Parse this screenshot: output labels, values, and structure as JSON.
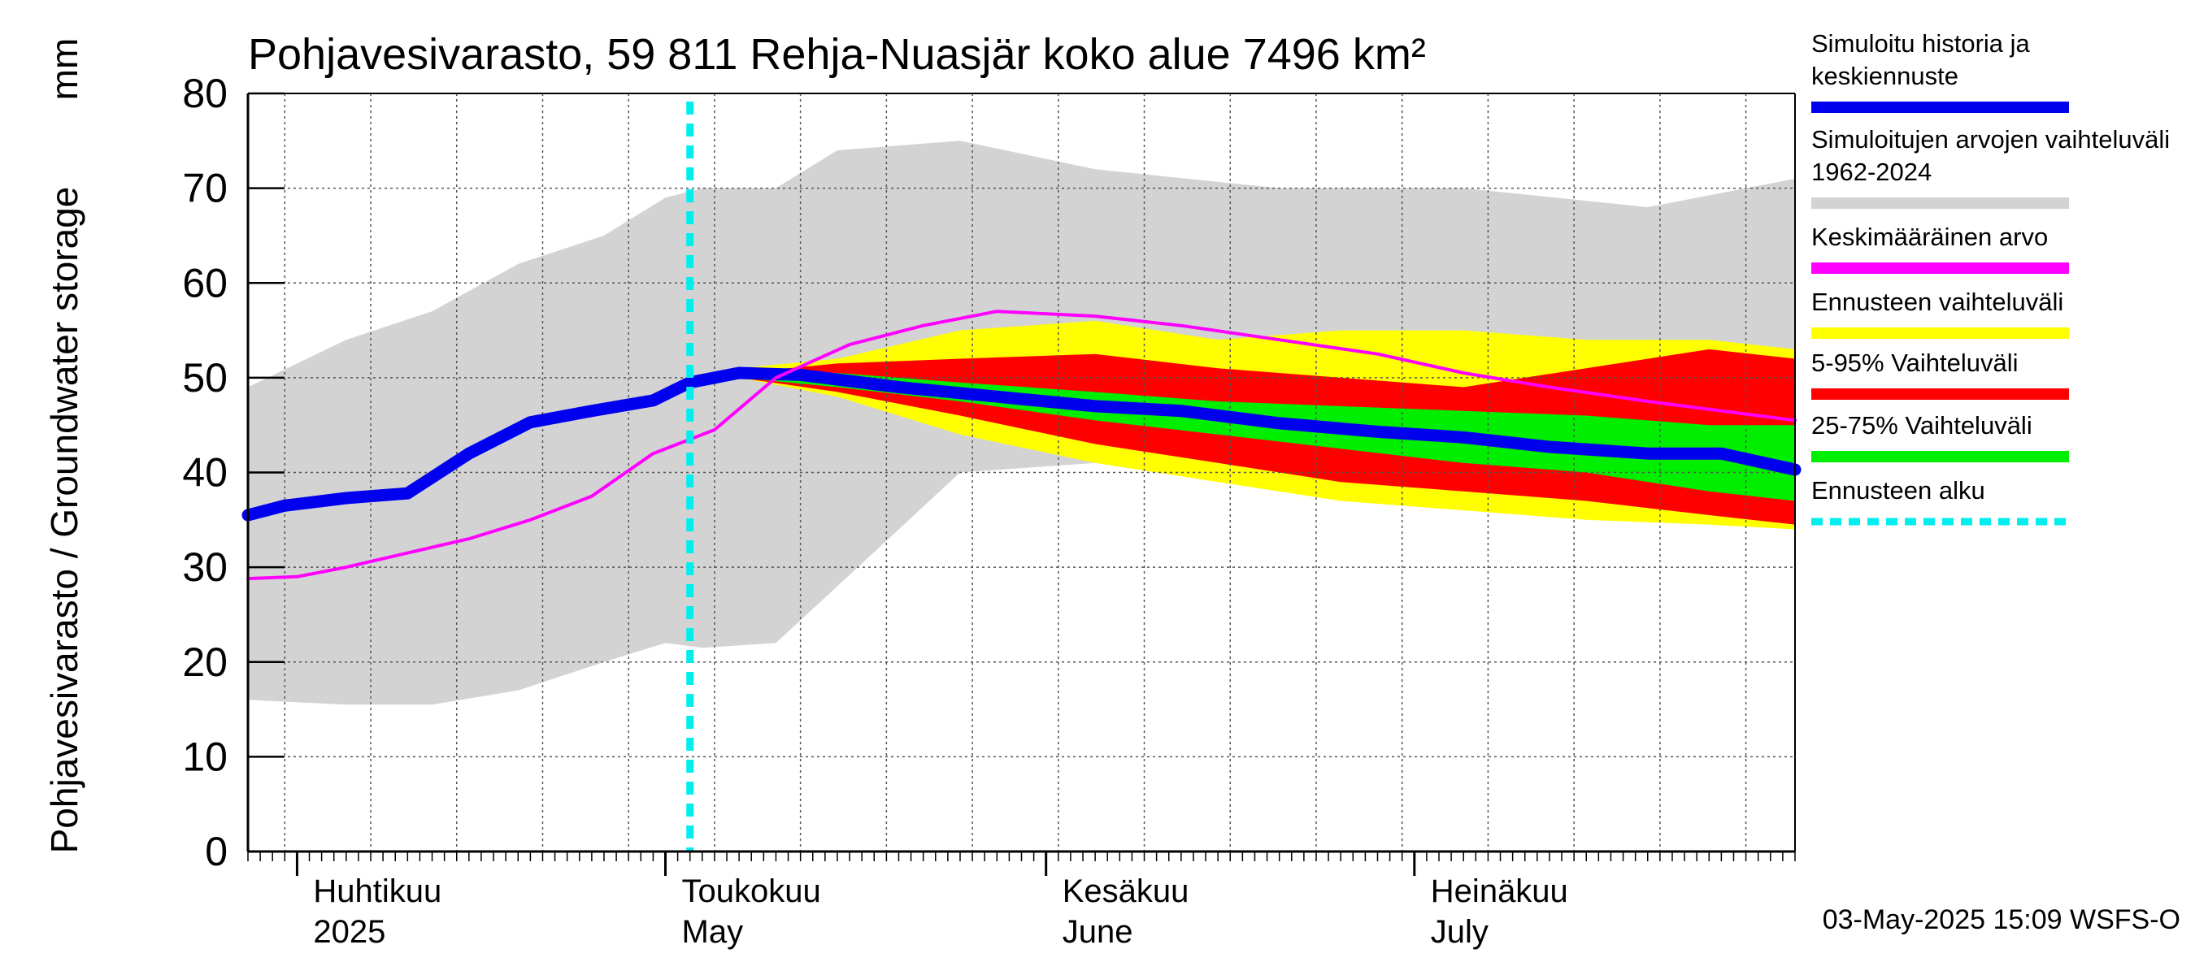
{
  "chart_data": {
    "type": "area",
    "title": "Pohjavesivarasto, 59 811 Rehja-Nuasjär koko alue 7496 km²",
    "ylabel": "Pohjavesivarasto / Groundwater storage",
    "yunit": "mm",
    "ylim": [
      0,
      80
    ],
    "yticks": [
      0,
      10,
      20,
      30,
      40,
      50,
      60,
      70,
      80
    ],
    "xlim": [
      "2025-03-28",
      "2025-08-01"
    ],
    "grid": true,
    "legend_position": "right",
    "forecast_start": "2025-05-03",
    "months": [
      {
        "date": "2025-04-01",
        "fi": "Huhtikuu",
        "year": "2025"
      },
      {
        "date": "2025-05-01",
        "fi": "Toukokuu",
        "en": "May"
      },
      {
        "date": "2025-06-01",
        "fi": "Kesäkuu",
        "en": "June"
      },
      {
        "date": "2025-07-01",
        "fi": "Heinäkuu",
        "en": "July"
      }
    ],
    "bands": [
      {
        "name": "Simuloitujen arvojen vaihteluväli 1962-2024",
        "color": "#d3d3d3",
        "x": [
          "2025-03-28",
          "2025-04-05",
          "2025-04-12",
          "2025-04-19",
          "2025-04-26",
          "2025-05-01",
          "2025-05-04",
          "2025-05-10",
          "2025-05-15",
          "2025-05-25",
          "2025-06-05",
          "2025-06-20",
          "2025-07-05",
          "2025-07-20",
          "2025-08-01"
        ],
        "upper": [
          49,
          54,
          57,
          62,
          65,
          69,
          70,
          70,
          74,
          75,
          72,
          70,
          70,
          68,
          71
        ],
        "lower": [
          16,
          15.5,
          15.5,
          17,
          20,
          22,
          21.5,
          22,
          28,
          40,
          41,
          38,
          36,
          35,
          34
        ]
      },
      {
        "name": "Ennusteen vaihteluväli",
        "color": "#ffff00",
        "x": [
          "2025-05-03",
          "2025-05-07",
          "2025-05-15",
          "2025-05-25",
          "2025-06-05",
          "2025-06-15",
          "2025-06-25",
          "2025-07-05",
          "2025-07-15",
          "2025-07-25",
          "2025-08-01"
        ],
        "upper": [
          49.5,
          51,
          52,
          55,
          56,
          54,
          55,
          55,
          54,
          54,
          53
        ],
        "lower": [
          49.5,
          50,
          48,
          44,
          41,
          39,
          37,
          36,
          35,
          34.5,
          34
        ]
      },
      {
        "name": "5-95% Vaihteluväli",
        "color": "#ff0000",
        "x": [
          "2025-05-03",
          "2025-05-07",
          "2025-05-15",
          "2025-05-25",
          "2025-06-05",
          "2025-06-15",
          "2025-06-25",
          "2025-07-05",
          "2025-07-15",
          "2025-07-25",
          "2025-08-01"
        ],
        "upper": [
          49.5,
          50.5,
          51.5,
          52,
          52.5,
          51,
          50,
          49,
          51,
          53,
          52
        ],
        "lower": [
          49.5,
          50,
          48.5,
          46,
          43,
          41,
          39,
          38,
          37,
          35.5,
          34.5
        ]
      },
      {
        "name": "25-75% Vaihteluväli",
        "color": "#00ee00",
        "x": [
          "2025-05-03",
          "2025-05-07",
          "2025-05-15",
          "2025-05-25",
          "2025-06-05",
          "2025-06-15",
          "2025-06-25",
          "2025-07-05",
          "2025-07-15",
          "2025-07-25",
          "2025-08-01"
        ],
        "upper": [
          49.5,
          50.5,
          50.5,
          49.5,
          48.5,
          47.5,
          47,
          46.5,
          46,
          45,
          45
        ],
        "lower": [
          49.5,
          50,
          49,
          47.5,
          45.5,
          44,
          42.5,
          41,
          40,
          38,
          37
        ]
      }
    ],
    "series": [
      {
        "name": "Simuloitu historia ja keskiennuste",
        "color": "#0000ee",
        "x": [
          "2025-03-28",
          "2025-03-31",
          "2025-04-05",
          "2025-04-10",
          "2025-04-15",
          "2025-04-20",
          "2025-04-25",
          "2025-04-30",
          "2025-05-03",
          "2025-05-07",
          "2025-05-12",
          "2025-05-20",
          "2025-05-28",
          "2025-06-05",
          "2025-06-12",
          "2025-06-20",
          "2025-06-28",
          "2025-07-05",
          "2025-07-12",
          "2025-07-20",
          "2025-07-26",
          "2025-08-01"
        ],
        "values": [
          35.5,
          36.5,
          37.3,
          37.8,
          42,
          45.3,
          46.5,
          47.6,
          49.5,
          50.5,
          50.3,
          49,
          48,
          47,
          46.5,
          45.2,
          44.3,
          43.7,
          42.7,
          42,
          42,
          40.3
        ]
      },
      {
        "name": "Keskimääräinen arvo",
        "color": "#ff00ff",
        "x": [
          "2025-03-28",
          "2025-04-01",
          "2025-04-05",
          "2025-04-10",
          "2025-04-15",
          "2025-04-20",
          "2025-04-25",
          "2025-04-30",
          "2025-05-05",
          "2025-05-10",
          "2025-05-16",
          "2025-05-22",
          "2025-05-28",
          "2025-06-05",
          "2025-06-12",
          "2025-06-20",
          "2025-06-28",
          "2025-07-05",
          "2025-07-12",
          "2025-07-20",
          "2025-08-01"
        ],
        "values": [
          28.8,
          29,
          30,
          31.5,
          33,
          35,
          37.5,
          42,
          44.5,
          50,
          53.5,
          55.5,
          57,
          56.5,
          55.5,
          54,
          52.5,
          50.5,
          49,
          47.5,
          45.5
        ]
      }
    ],
    "legend": [
      {
        "label": "Simuloitu historia ja keskiennuste",
        "color": "#0000ee",
        "style": "line"
      },
      {
        "label": "Simuloitujen arvojen vaihteluväli 1962-2024",
        "color": "#d3d3d3",
        "style": "line"
      },
      {
        "label": "Keskimääräinen arvo",
        "color": "#ff00ff",
        "style": "line"
      },
      {
        "label": "Ennusteen vaihteluväli",
        "color": "#ffff00",
        "style": "line"
      },
      {
        "label": "5-95% Vaihteluväli",
        "color": "#ff0000",
        "style": "line"
      },
      {
        "label": "25-75% Vaihteluväli",
        "color": "#00ee00",
        "style": "line"
      },
      {
        "label": "Ennusteen alku",
        "color": "#00eeee",
        "style": "dashed"
      }
    ],
    "footer": "03-May-2025 15:09 WSFS-O"
  }
}
